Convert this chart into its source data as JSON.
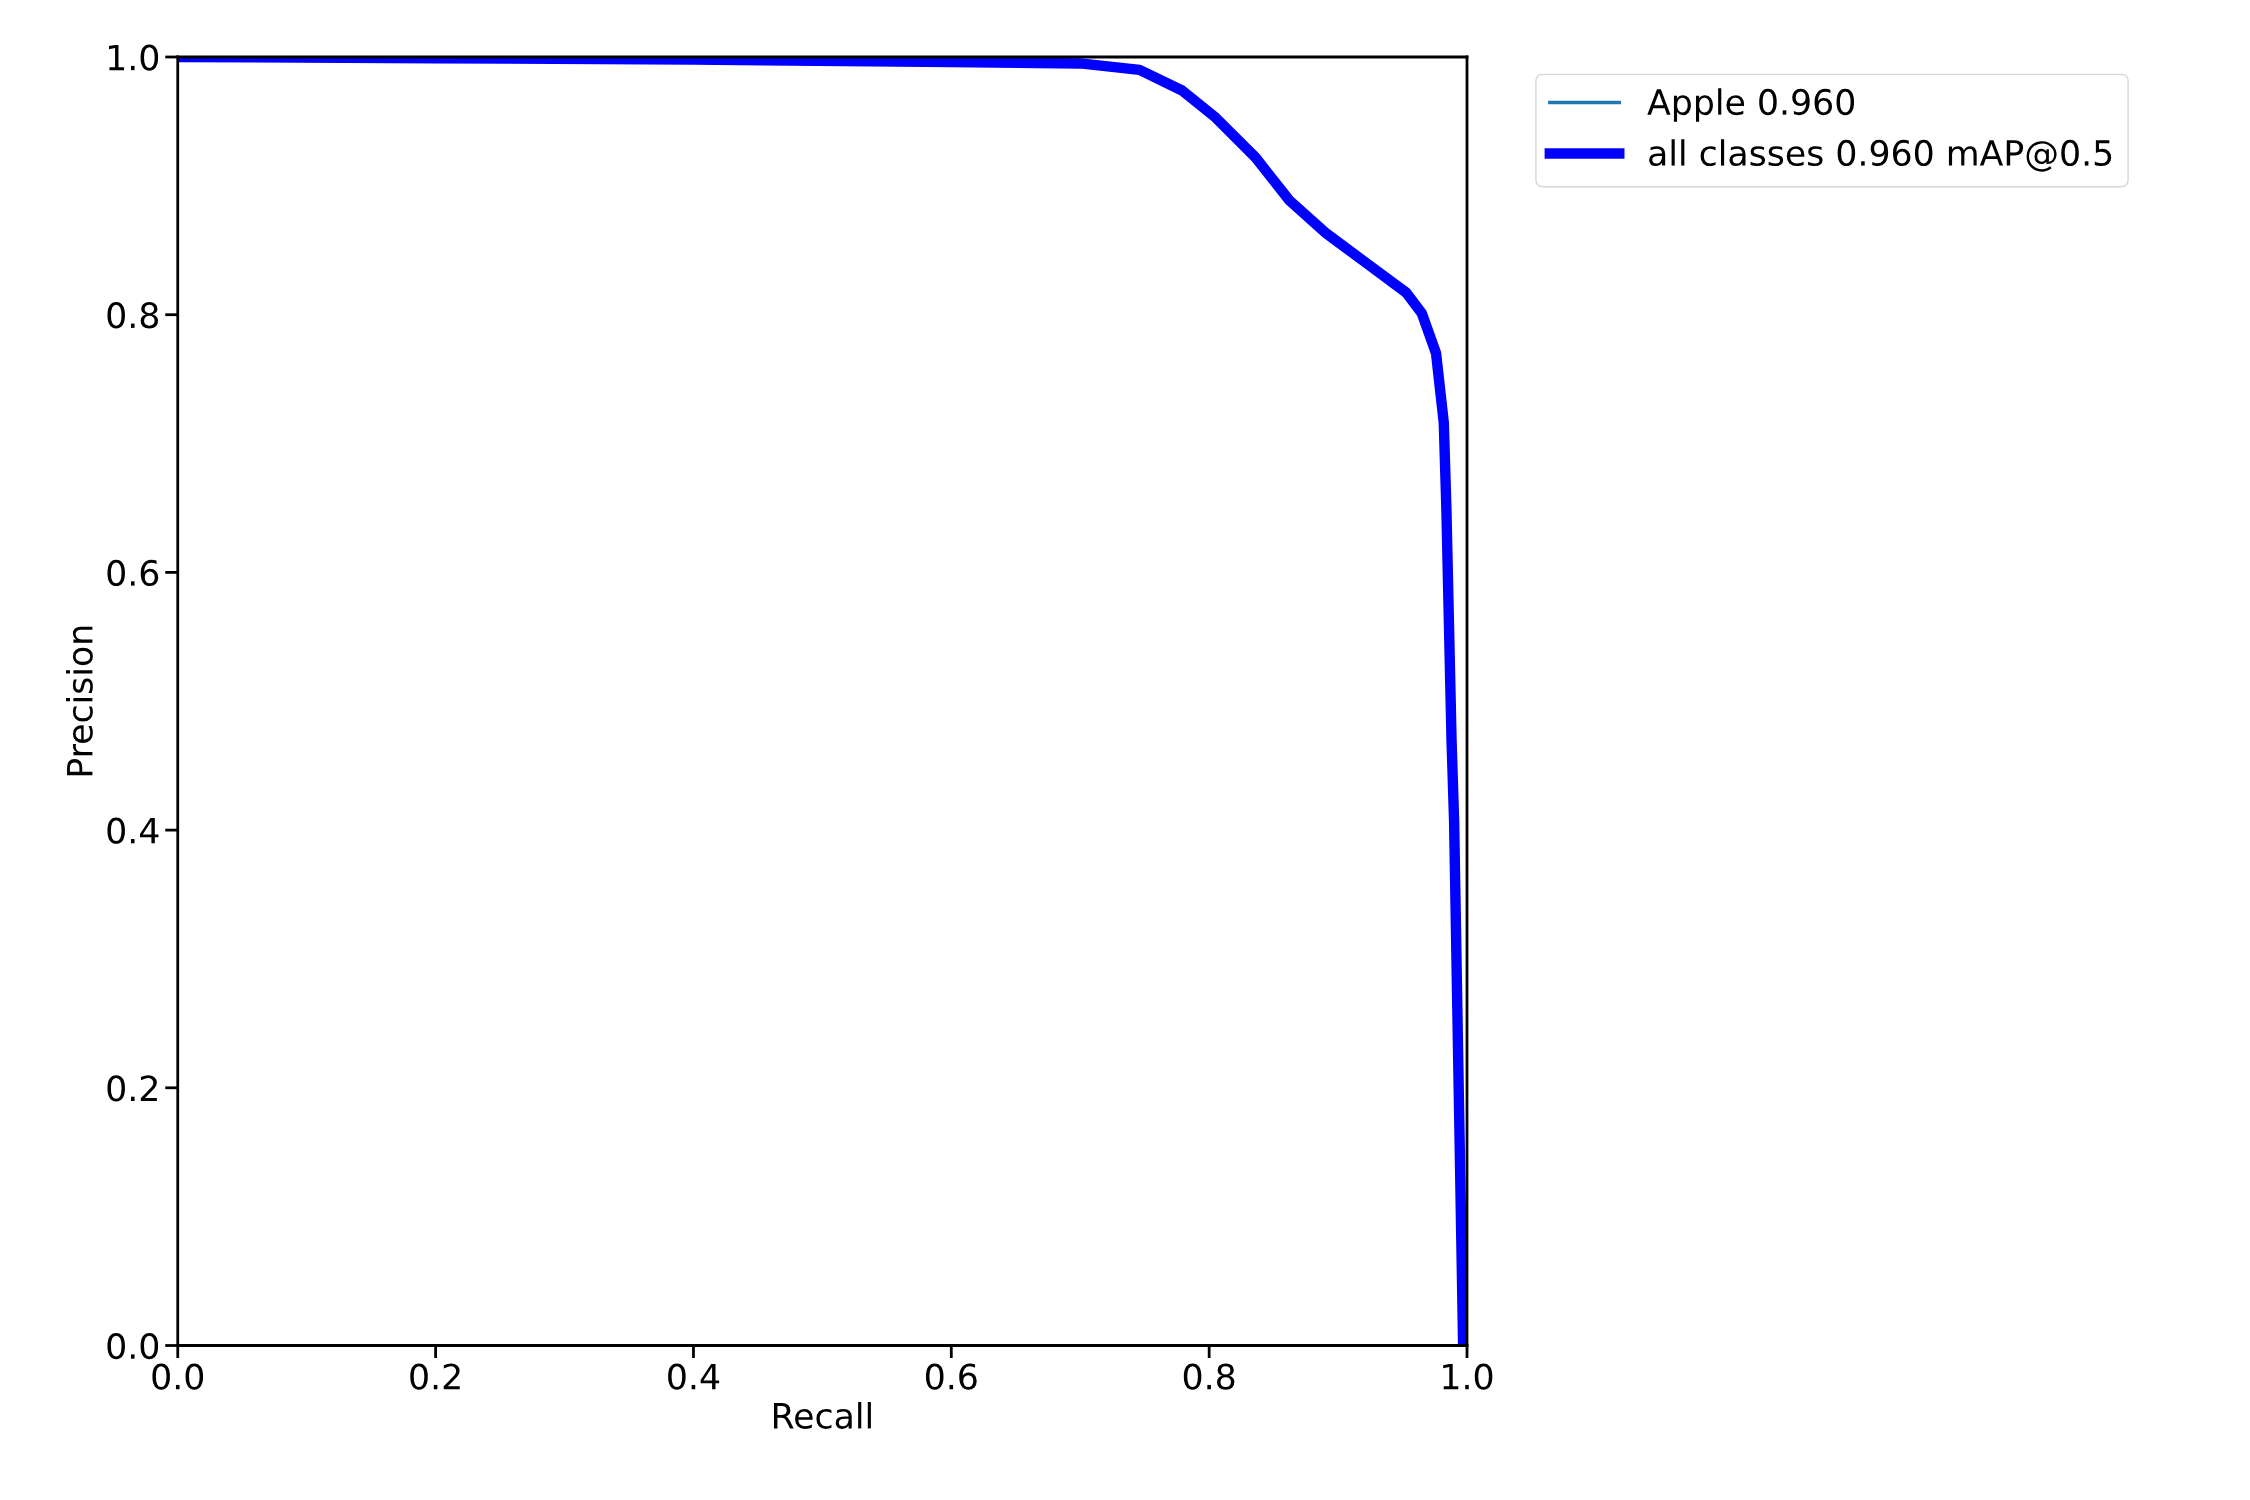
{
  "chart_data": {
    "type": "line",
    "xlabel": "Recall",
    "ylabel": "Precision",
    "x": [
      0.0,
      0.2,
      0.4,
      0.6,
      0.7,
      0.746,
      0.779,
      0.805,
      0.836,
      0.862,
      0.891,
      0.922,
      0.953,
      0.965,
      0.976,
      0.982,
      0.984,
      0.988,
      0.99,
      0.997
    ],
    "series": [
      {
        "name": "Apple 0.960",
        "color": "#1f77b4",
        "values": [
          null,
          null,
          null,
          null,
          null,
          null,
          null,
          null,
          null,
          null,
          null,
          null,
          null,
          null,
          null,
          null,
          null,
          null,
          null,
          null
        ]
      },
      {
        "name": "all classes 0.960 mAP@0.5",
        "color": "#0000ff",
        "values": [
          1.0,
          0.999,
          0.998,
          0.996,
          0.995,
          0.99,
          0.974,
          0.953,
          0.922,
          0.889,
          0.863,
          0.84,
          0.817,
          0.801,
          0.77,
          0.716,
          0.65,
          0.47,
          0.407,
          0.0
        ]
      }
    ],
    "xlim": [
      0,
      1
    ],
    "ylim": [
      0,
      1
    ],
    "xticks": [
      {
        "value": 0,
        "label": "0.0"
      },
      {
        "value": 0.2,
        "label": "0.2"
      },
      {
        "value": 0.4,
        "label": "0.4"
      },
      {
        "value": 0.6,
        "label": "0.6"
      },
      {
        "value": 0.8,
        "label": "0.8"
      },
      {
        "value": 1,
        "label": "1.0"
      }
    ],
    "yticks": [
      {
        "value": 0,
        "label": "0.0"
      },
      {
        "value": 0.2,
        "label": "0.2"
      },
      {
        "value": 0.4,
        "label": "0.4"
      },
      {
        "value": 0.6,
        "label": "0.6"
      },
      {
        "value": 0.8,
        "label": "0.8"
      },
      {
        "value": 1,
        "label": "1.0"
      }
    ],
    "legend": "top right",
    "grid": false
  }
}
